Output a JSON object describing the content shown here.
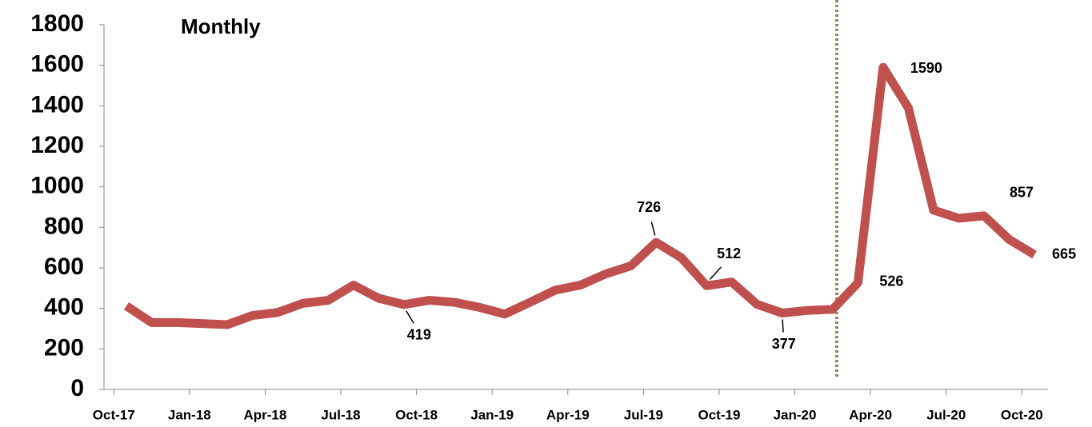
{
  "chart_data": {
    "type": "line",
    "annotation": "Monthly",
    "categories": [
      "Oct-17",
      null,
      null,
      "Jan-18",
      null,
      null,
      "Apr-18",
      null,
      null,
      "Jul-18",
      null,
      null,
      "Oct-18",
      null,
      null,
      "Jan-19",
      null,
      null,
      "Apr-19",
      null,
      null,
      "Jul-19",
      null,
      null,
      "Oct-19",
      null,
      null,
      "Jan-20",
      null,
      null,
      "Apr-20",
      null,
      null,
      "Jul-20",
      null,
      null,
      "Oct-20"
    ],
    "series": [
      {
        "name": null,
        "color": "#c0504d",
        "values": [
          412,
          330,
          330,
          325,
          320,
          365,
          380,
          425,
          440,
          515,
          450,
          419,
          440,
          430,
          405,
          372,
          430,
          490,
          515,
          570,
          610,
          726,
          650,
          512,
          530,
          420,
          377,
          390,
          395,
          526,
          1590,
          1390,
          885,
          845,
          857,
          740,
          665
        ],
        "value_labels": [
          null,
          null,
          null,
          null,
          null,
          null,
          null,
          null,
          null,
          null,
          null,
          "419",
          null,
          null,
          null,
          null,
          null,
          null,
          null,
          null,
          null,
          "726",
          null,
          "512",
          null,
          null,
          "377",
          null,
          null,
          "526",
          "1590",
          null,
          null,
          null,
          "857",
          null,
          "665"
        ]
      }
    ],
    "ylim": [
      0,
      1800
    ],
    "yticks": [
      0,
      200,
      400,
      600,
      800,
      1000,
      1200,
      1400,
      1600,
      1800
    ]
  }
}
